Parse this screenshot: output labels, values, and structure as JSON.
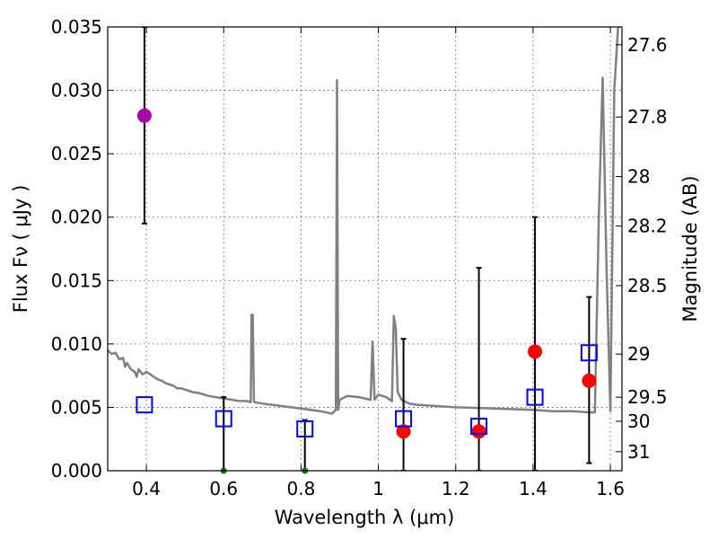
{
  "chart_data": {
    "type": "scatter",
    "xlabel": "Wavelength  λ (μm)",
    "ylabel": "Flux  Fν  ( μJy )",
    "y2label": "Magnitude (AB)",
    "xlim": [
      0.3,
      1.63
    ],
    "ylim": [
      0,
      0.035
    ],
    "grid": true,
    "x_ticks": [
      0.4,
      0.6,
      0.8,
      1.0,
      1.2,
      1.4,
      1.6
    ],
    "x_tick_labels": [
      "0.4",
      "0.6",
      "0.8",
      "1",
      "1.2",
      "1.4",
      "1.6"
    ],
    "y_ticks": [
      0,
      0.005,
      0.01,
      0.015,
      0.02,
      0.025,
      0.03,
      0.035
    ],
    "y_tick_labels": [
      "0.000",
      "0.005",
      "0.010",
      "0.015",
      "0.020",
      "0.025",
      "0.030",
      "0.035"
    ],
    "mag_ticks": [
      {
        "label": "27.6",
        "flux": 0.0336
      },
      {
        "label": "27.8",
        "flux": 0.0279
      },
      {
        "label": "28",
        "flux": 0.0232
      },
      {
        "label": "28.2",
        "flux": 0.0193
      },
      {
        "label": "28.5",
        "flux": 0.0146
      },
      {
        "label": "29",
        "flux": 0.0092
      },
      {
        "label": "29.5",
        "flux": 0.0058
      },
      {
        "label": "30",
        "flux": 0.0039
      },
      {
        "label": "31",
        "flux": 0.0015
      }
    ],
    "series": [
      {
        "name": "model-spectrum",
        "kind": "line",
        "color": "#808080",
        "x": [
          0.3,
          0.31,
          0.32,
          0.33,
          0.34,
          0.345,
          0.35,
          0.36,
          0.37,
          0.375,
          0.38,
          0.39,
          0.4,
          0.41,
          0.42,
          0.43,
          0.44,
          0.45,
          0.46,
          0.47,
          0.48,
          0.49,
          0.5,
          0.52,
          0.54,
          0.56,
          0.58,
          0.6,
          0.62,
          0.64,
          0.66,
          0.67,
          0.672,
          0.675,
          0.678,
          0.68,
          0.7,
          0.75,
          0.8,
          0.85,
          0.88,
          0.89,
          0.893,
          0.896,
          0.9,
          0.92,
          0.95,
          0.98,
          0.985,
          0.99,
          1.0,
          1.02,
          1.035,
          1.04,
          1.045,
          1.05,
          1.06,
          1.08,
          1.1,
          1.2,
          1.3,
          1.4,
          1.45,
          1.5,
          1.55,
          1.56,
          1.57,
          1.58,
          1.59,
          1.6,
          1.61,
          1.62,
          1.63
        ],
        "y": [
          0.0095,
          0.0092,
          0.0093,
          0.0088,
          0.0089,
          0.0082,
          0.0085,
          0.008,
          0.0078,
          0.0074,
          0.008,
          0.0076,
          0.0078,
          0.0076,
          0.0074,
          0.0072,
          0.0071,
          0.0069,
          0.0068,
          0.0067,
          0.0065,
          0.0065,
          0.0064,
          0.0062,
          0.0061,
          0.0059,
          0.0058,
          0.0057,
          0.0056,
          0.0055,
          0.0055,
          0.0054,
          0.0123,
          0.0123,
          0.0055,
          0.0054,
          0.0053,
          0.0051,
          0.0049,
          0.0047,
          0.0045,
          0.0048,
          0.0308,
          0.0048,
          0.0056,
          0.0059,
          0.0058,
          0.0056,
          0.0102,
          0.0056,
          0.006,
          0.0058,
          0.0055,
          0.0122,
          0.0112,
          0.0062,
          0.0056,
          0.0053,
          0.0052,
          0.005,
          0.0049,
          0.0048,
          0.0047,
          0.0047,
          0.0046,
          0.0046,
          0.02,
          0.031,
          0.016,
          0.0047,
          0.03,
          0.035,
          0.0355
        ]
      },
      {
        "name": "observed-flux",
        "kind": "scatter-errorbar",
        "color": "#ff0000",
        "x": [
          1.065,
          1.26,
          1.405,
          1.545
        ],
        "y": [
          0.0031,
          0.0031,
          0.0094,
          0.0071
        ],
        "yerr_low": [
          0.0031,
          0.0031,
          0.0094,
          0.0065
        ],
        "yerr_high": [
          0.0073,
          0.0129,
          0.0106,
          0.0066
        ]
      },
      {
        "name": "u-band-flux",
        "kind": "scatter-errorbar",
        "color": "#aa00aa",
        "x": [
          0.395
        ],
        "y": [
          0.028
        ],
        "yerr_low": [
          0.0085
        ],
        "yerr_high": [
          0.007
        ]
      },
      {
        "name": "upper-limits",
        "kind": "scatter-errorbar",
        "color": "#008000",
        "x": [
          0.6,
          0.81
        ],
        "y": [
          0.0,
          0.0
        ],
        "yerr_low": [
          0.0,
          0.0
        ],
        "yerr_high": [
          0.0058,
          0.004
        ]
      },
      {
        "name": "model-band-flux",
        "kind": "squares",
        "color": "#0000ff",
        "x": [
          0.395,
          0.6,
          0.81,
          1.065,
          1.26,
          1.405,
          1.545
        ],
        "y": [
          0.0052,
          0.0041,
          0.0033,
          0.0041,
          0.0035,
          0.0058,
          0.0093
        ]
      }
    ]
  }
}
